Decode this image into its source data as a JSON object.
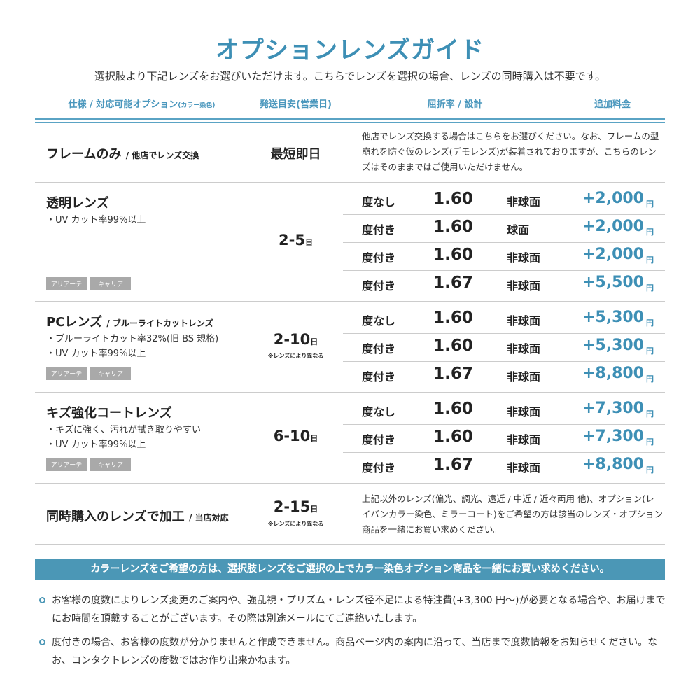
{
  "title": "オプションレンズガイド",
  "subtitle": "選択肢より下記レンズをお選びいただけます。こちらでレンズを選択の場合、レンズの同時購入は不要です。",
  "headers": {
    "spec": "仕様 / 対応可能オプション",
    "spec_small": "(カラー染色)",
    "ship": "発送目安(営業日)",
    "index": "屈折率 / 設計",
    "price": "追加料金"
  },
  "colors": {
    "accent": "#3d8fb5",
    "banner": "#4b97b6",
    "tag": "#a9a9a9"
  },
  "frame": {
    "name": "フレームのみ",
    "name_sub": "/ 他店でレンズ交換",
    "ship": "最短即日",
    "desc": "他店でレンズ交換する場合はこちらをお選びください。なお、フレームの型崩れを防ぐ仮のレンズ(デモレンズ)が装着されておりますが、こちらのレンズはそのままではご使用いただけません。"
  },
  "tags": [
    "アリアーテ",
    "キャリア"
  ],
  "day_unit": "日",
  "yen": "円",
  "vary_note": "※レンズにより異なる",
  "groups": [
    {
      "name": "透明レンズ",
      "name_sub": "",
      "bullets": [
        "・UV カット率99%以上"
      ],
      "ship": "2-5",
      "rows": [
        {
          "deg": "度なし",
          "idx": "1.60",
          "design": "非球面",
          "price": "+2,000"
        },
        {
          "deg": "度付き",
          "idx": "1.60",
          "design": "球面",
          "price": "+2,000"
        },
        {
          "deg": "度付き",
          "idx": "1.60",
          "design": "非球面",
          "price": "+2,000"
        },
        {
          "deg": "度付き",
          "idx": "1.67",
          "design": "非球面",
          "price": "+5,500"
        }
      ]
    },
    {
      "name": "PCレンズ",
      "name_sub": "/ ブルーライトカットレンズ",
      "bullets": [
        "・ブルーライトカット率32%(旧 BS 規格)",
        "・UV カット率99%以上"
      ],
      "ship": "2-10",
      "rows": [
        {
          "deg": "度なし",
          "idx": "1.60",
          "design": "非球面",
          "price": "+5,300"
        },
        {
          "deg": "度付き",
          "idx": "1.60",
          "design": "非球面",
          "price": "+5,300"
        },
        {
          "deg": "度付き",
          "idx": "1.67",
          "design": "非球面",
          "price": "+8,800"
        }
      ]
    },
    {
      "name": "キズ強化コートレンズ",
      "name_sub": "",
      "bullets": [
        "・キズに強く、汚れが拭き取りやすい",
        "・UV カット率99%以上"
      ],
      "ship": "6-10",
      "rows": [
        {
          "deg": "度なし",
          "idx": "1.60",
          "design": "非球面",
          "price": "+7,300"
        },
        {
          "deg": "度付き",
          "idx": "1.60",
          "design": "非球面",
          "price": "+7,300"
        },
        {
          "deg": "度付き",
          "idx": "1.67",
          "design": "非球面",
          "price": "+8,800"
        }
      ]
    }
  ],
  "process": {
    "name": "同時購入のレンズで加工",
    "name_sub": "/ 当店対応",
    "ship": "2-15",
    "desc": "上記以外のレンズ(偏光、調光、遠近 / 中近 / 近々両用 他)、オプション(レイバンカラー染色、ミラーコート)をご希望の方は該当のレンズ・オプション商品を一緒にお買い求めください。"
  },
  "banner": "カラーレンズをご希望の方は、選択肢レンズをご選択の上でカラー染色オプション商品を一緒にお買い求めください。",
  "notes": [
    "お客様の度数によりレンズ変更のご案内や、強乱視・プリズム・レンズ径不足による特注費(+3,300 円〜)が必要となる場合や、お届けまでにお時間を頂戴することがございます。その際は別途メールにてご連絡いたします。",
    "度付きの場合、お客様の度数が分かりませんと作成できません。商品ページ内の案内に沿って、当店まで度数情報をお知らせください。なお、コンタクトレンズの度数ではお作り出来かねます。"
  ]
}
